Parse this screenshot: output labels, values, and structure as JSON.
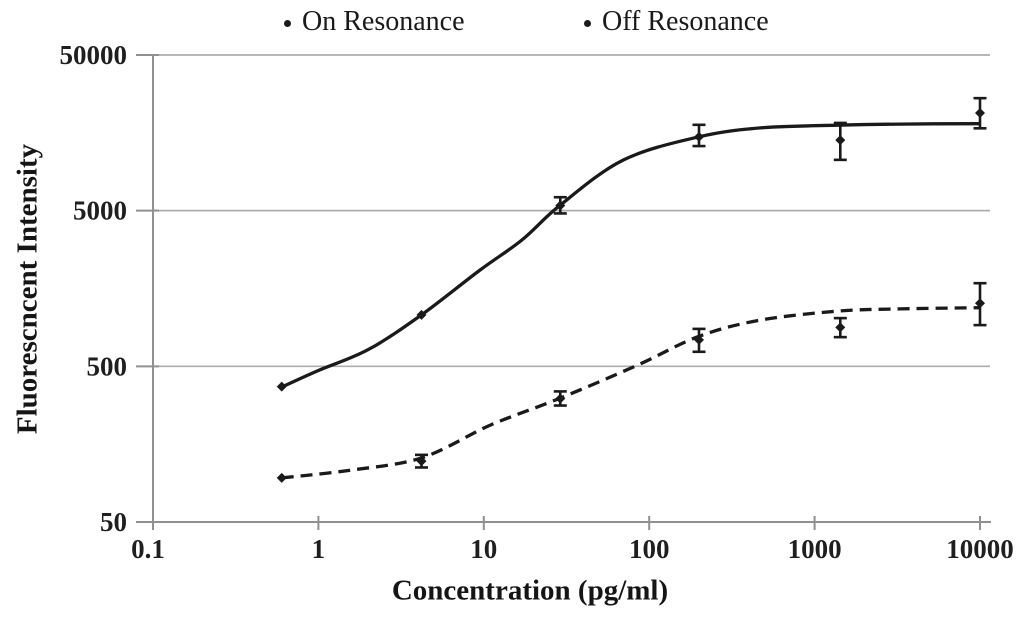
{
  "figure": {
    "background": "#ffffff",
    "ink_color": "#1a1a1a",
    "grid_color": "#adadad",
    "axis_color": "#909090"
  },
  "chart_data": {
    "type": "line-scatter",
    "title": "",
    "xlabel": "Concentration (pg/ml)",
    "ylabel": "Fluorescncent Intensity",
    "x_scale": "log",
    "y_scale": "log",
    "xlim": [
      0.1,
      10000
    ],
    "ylim": [
      50,
      50000
    ],
    "grid": "horizontal gridlines at 500, 5000, 50000",
    "legend_position": "top",
    "x_ticks": [
      {
        "value": 0.1,
        "label": "0.1"
      },
      {
        "value": 1,
        "label": "1"
      },
      {
        "value": 10,
        "label": "10"
      },
      {
        "value": 100,
        "label": "100"
      },
      {
        "value": 1000,
        "label": "1000"
      },
      {
        "value": 10000,
        "label": "10000"
      }
    ],
    "y_ticks": [
      {
        "value": 50,
        "label": "50"
      },
      {
        "value": 500,
        "label": "500"
      },
      {
        "value": 5000,
        "label": "5000"
      },
      {
        "value": 50000,
        "label": "50000"
      }
    ],
    "series": [
      {
        "name": "On Resonance",
        "line_style": "solid",
        "marker": "diamond-dot",
        "points": [
          {
            "x": 0.6,
            "y": 370
          },
          {
            "x": 4.2,
            "y": 1070
          },
          {
            "x": 29,
            "y": 5400,
            "err_plus": 700,
            "err_minus": 600
          },
          {
            "x": 200,
            "y": 14900,
            "err_plus": 2900,
            "err_minus": 1900
          },
          {
            "x": 1430,
            "y": 14200,
            "err_plus": 4100,
            "err_minus": 3600
          },
          {
            "x": 10000,
            "y": 21200,
            "err_plus": 5200,
            "err_minus": 4300
          }
        ],
        "fit_curve": [
          [
            0.6,
            368
          ],
          [
            1,
            470
          ],
          [
            2,
            640
          ],
          [
            4.2,
            1070
          ],
          [
            9.5,
            2080
          ],
          [
            17,
            3240
          ],
          [
            29,
            5430
          ],
          [
            70,
            10600
          ],
          [
            200,
            14900
          ],
          [
            470,
            17000
          ],
          [
            1360,
            17700
          ],
          [
            3300,
            18000
          ],
          [
            10000,
            18100
          ]
        ]
      },
      {
        "name": "Off Resonance",
        "line_style": "dashed",
        "marker": "diamond-dot",
        "points": [
          {
            "x": 0.6,
            "y": 96
          },
          {
            "x": 4.2,
            "y": 123,
            "err_plus": 12,
            "err_minus": 11
          },
          {
            "x": 29,
            "y": 310,
            "err_plus": 35,
            "err_minus": 30
          },
          {
            "x": 200,
            "y": 740,
            "err_plus": 130,
            "err_minus": 120
          },
          {
            "x": 1430,
            "y": 890,
            "err_plus": 130,
            "err_minus": 120
          },
          {
            "x": 10000,
            "y": 1270,
            "err_plus": 440,
            "err_minus": 350
          }
        ],
        "fit_curve": [
          [
            0.6,
            96
          ],
          [
            1.5,
            107
          ],
          [
            4.2,
            129
          ],
          [
            11,
            210
          ],
          [
            28,
            308
          ],
          [
            84,
            506
          ],
          [
            200,
            780
          ],
          [
            470,
            990
          ],
          [
            1360,
            1130
          ],
          [
            3300,
            1170
          ],
          [
            10000,
            1190
          ]
        ]
      }
    ]
  }
}
